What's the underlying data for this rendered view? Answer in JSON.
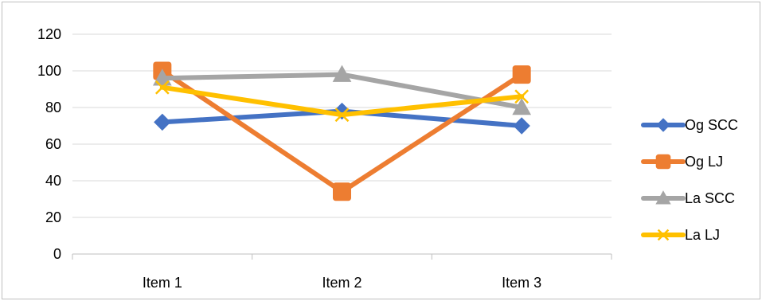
{
  "chart_data": {
    "type": "line",
    "title": "",
    "xlabel": "",
    "ylabel": "",
    "categories": [
      "Item 1",
      "Item 2",
      "Item 3"
    ],
    "ylim": [
      0,
      120
    ],
    "yticks": [
      "0",
      "20",
      "40",
      "60",
      "80",
      "100",
      "120"
    ],
    "grid": "horizontal",
    "legend_position": "right",
    "series": [
      {
        "name": "Og SCC",
        "values": [
          72,
          78,
          70
        ],
        "color": "#4472c4",
        "marker": "diamond"
      },
      {
        "name": "Og LJ",
        "values": [
          100,
          34,
          98
        ],
        "color": "#ed7d31",
        "marker": "square"
      },
      {
        "name": "La SCC",
        "values": [
          96,
          98,
          80
        ],
        "color": "#a5a5a5",
        "marker": "triangle"
      },
      {
        "name": "La LJ",
        "values": [
          91,
          76,
          86
        ],
        "color": "#ffc000",
        "marker": "x"
      }
    ]
  }
}
